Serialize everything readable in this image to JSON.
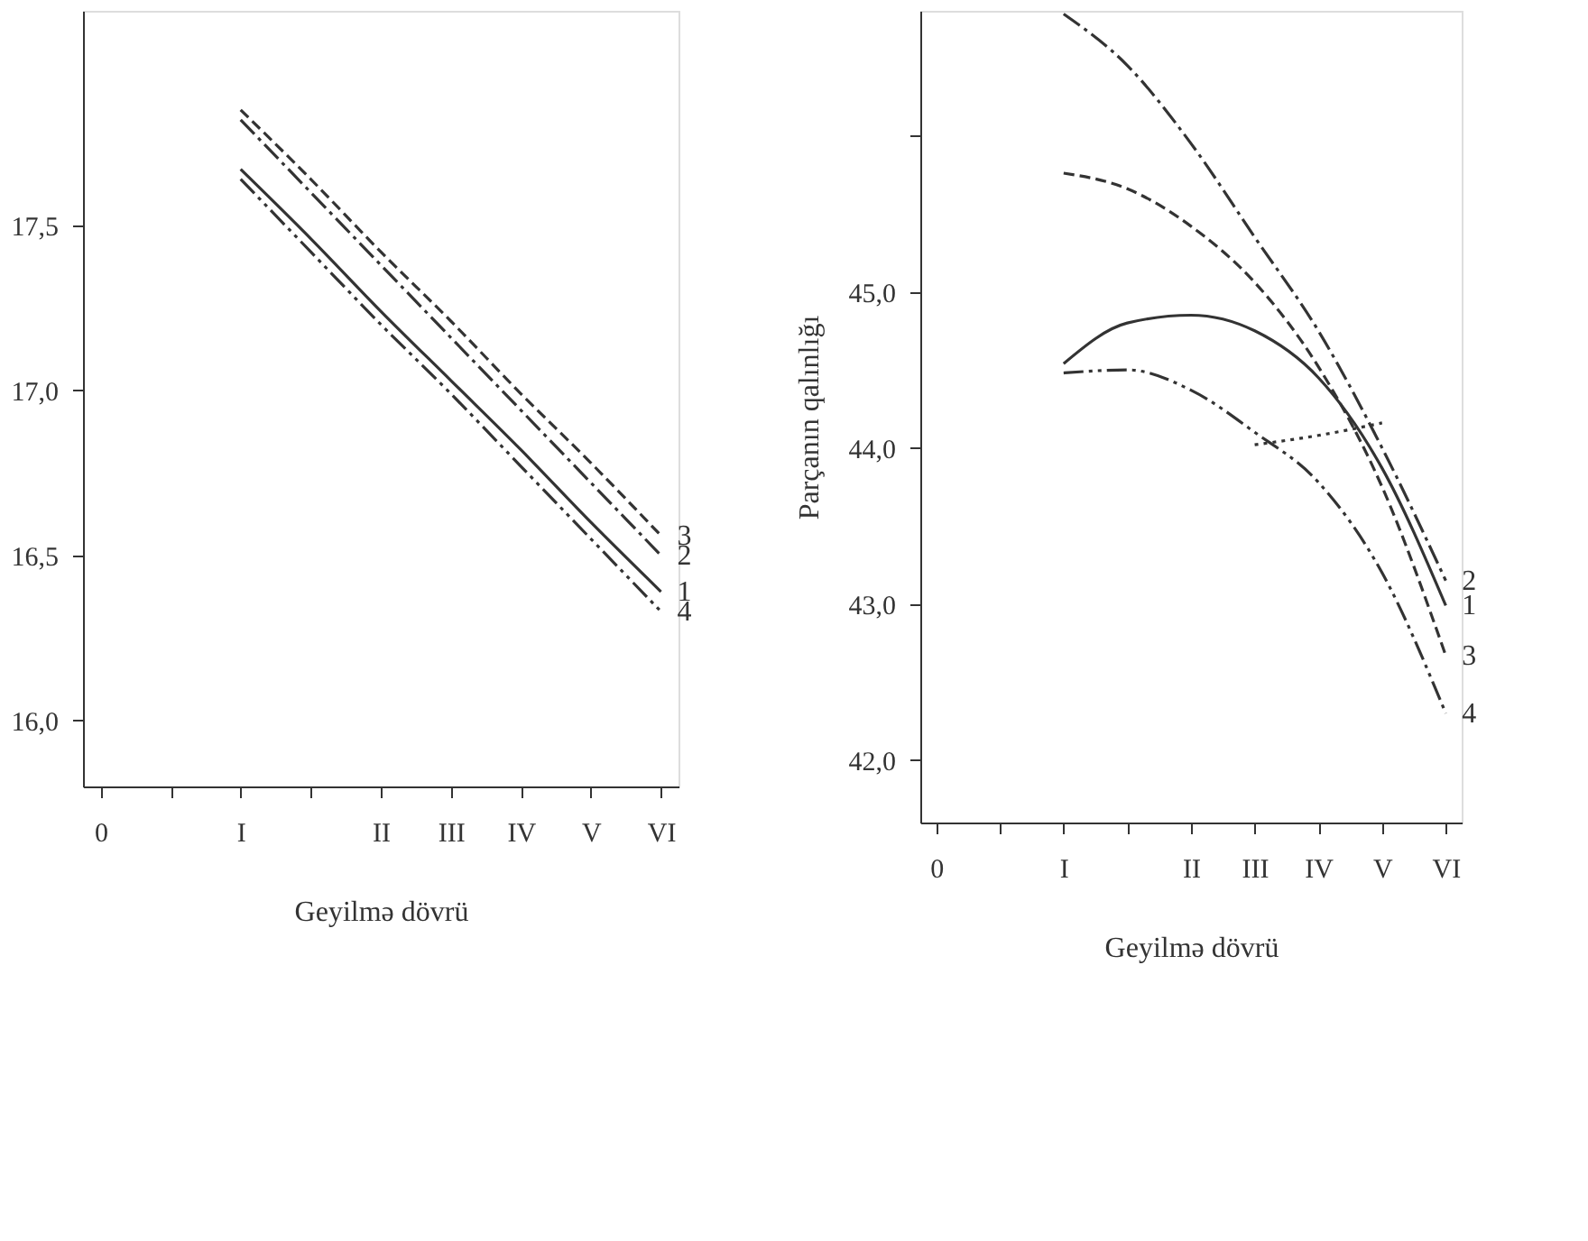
{
  "chart_data": [
    {
      "type": "line",
      "xlabel": "Geyilmə dövrü",
      "ylim": [
        15.8,
        18.15
      ],
      "categories": [
        "0",
        null,
        "I",
        null,
        "II",
        "III",
        "IV",
        "V",
        "VI"
      ],
      "yticks": [
        {
          "value": 16.0,
          "label": "16,0"
        },
        {
          "value": 16.5,
          "label": "16,5"
        },
        {
          "value": 17.0,
          "label": "17,0"
        },
        {
          "value": 17.5,
          "label": "17,5"
        }
      ],
      "grid": false,
      "series": [
        {
          "name": "3",
          "color": "#333333",
          "line_style": "dashed",
          "values": [
            null,
            null,
            17.85,
            17.64,
            17.42,
            17.21,
            16.99,
            16.78,
            16.56
          ]
        },
        {
          "name": "2",
          "color": "#333333",
          "line_style": "dashed",
          "values": [
            null,
            null,
            17.82,
            17.6,
            17.38,
            17.16,
            16.94,
            16.72,
            16.5
          ]
        },
        {
          "name": "1",
          "color": "#333333",
          "line_style": "solid",
          "values": [
            null,
            null,
            17.67,
            17.46,
            17.24,
            17.03,
            16.82,
            16.6,
            16.39
          ]
        },
        {
          "name": "4",
          "color": "#333333",
          "line_style": "dotted",
          "values": [
            null,
            null,
            17.64,
            17.42,
            17.2,
            16.99,
            16.77,
            16.55,
            16.33
          ]
        }
      ]
    },
    {
      "type": "line",
      "xlabel": "Geyilmə dövrü",
      "ylabel": "Parçanın qalınlığı",
      "ylim": [
        41.6,
        46.8
      ],
      "categories": [
        "0",
        null,
        "I",
        null,
        "II",
        "III",
        "IV",
        "V",
        "VI"
      ],
      "yticks": [
        {
          "value": 42,
          "label": "42,0"
        },
        {
          "value": 43,
          "label": "43,0"
        },
        {
          "value": 44,
          "label": "44,0"
        },
        {
          "value": 45,
          "label": "45,0"
        },
        {
          "value": 46,
          "label": null
        }
      ],
      "grid": false,
      "series": [
        {
          "name": "2",
          "color": "#333333",
          "line_style": "dashed",
          "values": [
            null,
            null,
            46.78,
            46.45,
            45.95,
            45.35,
            44.75,
            44.0,
            43.15
          ]
        },
        {
          "name": "1",
          "color": "#333333",
          "line_style": "solid",
          "values": [
            null,
            null,
            44.54,
            44.8,
            44.85,
            44.75,
            44.45,
            43.87,
            42.99
          ]
        },
        {
          "name": "3",
          "color": "#333333",
          "line_style": "dashed",
          "values": [
            null,
            null,
            45.76,
            45.66,
            45.42,
            45.06,
            44.52,
            43.75,
            42.67
          ]
        },
        {
          "name": "4",
          "color": "#333333",
          "line_style": "dotted",
          "values": [
            null,
            null,
            44.48,
            44.5,
            44.37,
            44.1,
            43.78,
            43.2,
            42.3
          ]
        },
        {
          "color": "#333333",
          "line_style": "dotted",
          "values": [
            null,
            null,
            null,
            null,
            null,
            44.02,
            44.08,
            44.16,
            null
          ]
        }
      ]
    }
  ]
}
